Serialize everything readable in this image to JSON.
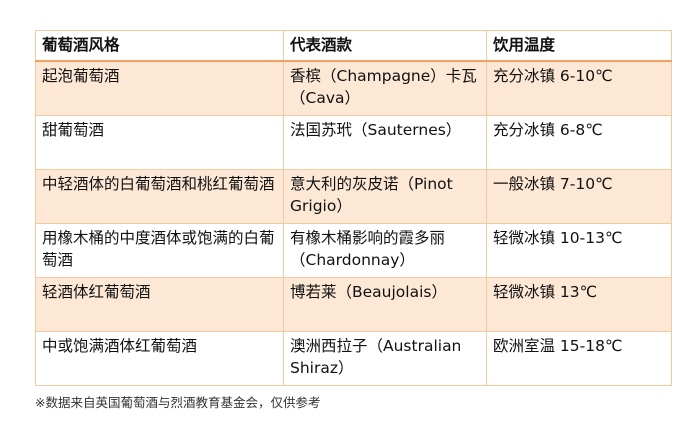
{
  "table": {
    "headers": [
      "葡萄酒风格",
      "代表酒款",
      "饮用温度"
    ],
    "rows": [
      [
        "起泡葡萄酒",
        "香槟（Champagne）卡瓦（Cava）",
        "充分冰镇 6-10℃"
      ],
      [
        "甜葡萄酒",
        "法国苏玳（Sauternes）",
        "充分冰镇 6-8℃"
      ],
      [
        "中轻酒体的白葡萄酒和桃红葡萄酒",
        "意大利的灰皮诺（Pinot Grigio）",
        "一般冰镇 7-10℃"
      ],
      [
        "用橡木桶的中度酒体或饱满的白葡萄酒",
        "有橡木桶影响的霞多丽（Chardonnay）",
        "轻微冰镇 10-13℃"
      ],
      [
        "轻酒体红葡萄酒",
        "博若莱（Beaujolais）",
        "轻微冰镇 13℃"
      ],
      [
        "中或饱满酒体红葡萄酒",
        "澳洲西拉子（Australian Shiraz）",
        "欧洲室温 15-18℃"
      ]
    ]
  },
  "footnote": "※数据来自英国葡萄酒与烈酒教育基金会，仅供参考",
  "colors": {
    "border": "#f0a060",
    "row_shade": "#fde7d5"
  }
}
